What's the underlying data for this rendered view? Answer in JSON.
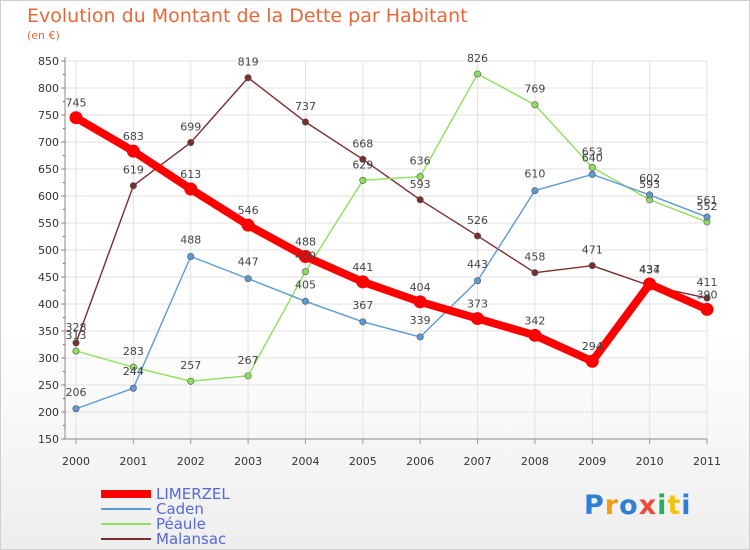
{
  "chart_data": {
    "type": "line",
    "title": "Evolution du Montant de la Dette par Habitant",
    "subtitle": "(en €)",
    "categories": [
      "2000",
      "2001",
      "2002",
      "2003",
      "2004",
      "2005",
      "2006",
      "2007",
      "2008",
      "2009",
      "2010",
      "2011"
    ],
    "ylim": [
      150,
      850
    ],
    "yticks": [
      150,
      200,
      250,
      300,
      350,
      400,
      450,
      500,
      550,
      600,
      650,
      700,
      750,
      800,
      850
    ],
    "grid": true,
    "legend_position": "bottom-left",
    "series": [
      {
        "name": "LIMERZEL",
        "color": "#ff0000",
        "values": [
          745,
          683,
          613,
          546,
          488,
          441,
          404,
          373,
          342,
          294,
          437,
          390
        ]
      },
      {
        "name": "Caden",
        "color": "#5b9bd5",
        "values": [
          206,
          244,
          488,
          447,
          405,
          367,
          339,
          443,
          610,
          640,
          602,
          561
        ]
      },
      {
        "name": "Péaule",
        "color": "#8ee05a",
        "values": [
          313,
          283,
          257,
          267,
          460,
          629,
          636,
          826,
          769,
          653,
          593,
          552
        ]
      },
      {
        "name": "Malansac",
        "color": "#7b2d2d",
        "values": [
          328,
          619,
          699,
          819,
          737,
          668,
          593,
          526,
          458,
          471,
          434,
          411
        ]
      }
    ]
  },
  "logo": {
    "text": "Proxiti",
    "colors": [
      "#2f7fd8",
      "#f39c12",
      "#2f7fd8",
      "#e74c3c",
      "#27ae60",
      "#f1c40f",
      "#2f7fd8"
    ]
  }
}
